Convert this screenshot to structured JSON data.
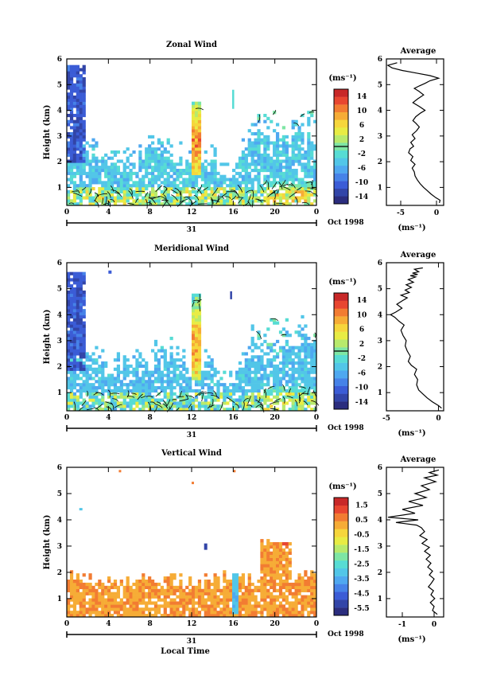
{
  "chart_data": [
    {
      "type": "heatmap",
      "title": "Zonal Wind",
      "ylabel": "Height (km)",
      "ylim": [
        0.3,
        6
      ],
      "xlim": [
        0,
        24
      ],
      "x_ticks": [
        "0",
        "4",
        "8",
        "12",
        "16",
        "20",
        "0"
      ],
      "y_ticks": [
        "1",
        "2",
        "3",
        "4",
        "5",
        "6"
      ],
      "date_day": "31",
      "date_month": "Oct 1998",
      "colorbar": {
        "unit": "(ms⁻¹)",
        "labels": [
          "14",
          "10",
          "6",
          "2",
          "-2",
          "-6",
          "-10",
          "-14"
        ],
        "range": [
          -16,
          16
        ],
        "contour_line": 0
      },
      "field": {
        "description_values": "m/s",
        "surface_range": [
          -4,
          6
        ],
        "mid_level": [
          -6,
          -2
        ],
        "upper_plume_0_2h_km": [
          2,
          5.8
        ],
        "upper_plume_0_2h_value": -11,
        "updraft_12_13h_km": [
          1.5,
          4.3
        ],
        "updraft_12_13h_value": 12
      },
      "profile": {
        "title": "Average",
        "xlabel": "(ms⁻¹)",
        "x_ticks": [
          "-5",
          "0"
        ],
        "xlim": [
          -7,
          1
        ],
        "y_ticks": [
          "1",
          "2",
          "3",
          "4",
          "5",
          "6"
        ],
        "x": [
          0.4,
          0.5,
          -0.1,
          -0.8,
          -1.4,
          -1.8,
          -2.3,
          -2.7,
          -3.0,
          -3.1,
          -3.4,
          -3.0,
          -3.6,
          -3.3,
          -3.9,
          -3.7,
          -3.2,
          -3.6,
          -3.0,
          -3.4,
          -2.8,
          -2.4,
          -2.9,
          -3.3,
          -2.9,
          -2.2,
          -1.6,
          -2.4,
          -3.3,
          -2.6,
          -1.8,
          -2.5,
          -3.1,
          -2.4,
          -1.6,
          -0.9,
          0.3,
          -0.9,
          -2.8,
          -4.8,
          -6.2,
          -6.8,
          -5.5
        ],
        "y": [
          0.4,
          0.5,
          0.6,
          0.75,
          0.9,
          1.0,
          1.15,
          1.3,
          1.45,
          1.6,
          1.75,
          1.9,
          2.05,
          2.2,
          2.35,
          2.5,
          2.6,
          2.75,
          2.9,
          3.05,
          3.2,
          3.35,
          3.5,
          3.6,
          3.75,
          3.9,
          4.0,
          4.15,
          4.3,
          4.45,
          4.6,
          4.75,
          4.85,
          4.95,
          5.05,
          5.15,
          5.25,
          5.35,
          5.45,
          5.55,
          5.65,
          5.75,
          5.85
        ]
      }
    },
    {
      "type": "heatmap",
      "title": "Meridional Wind",
      "ylabel": "Height (km)",
      "ylim": [
        0.3,
        6
      ],
      "xlim": [
        0,
        24
      ],
      "x_ticks": [
        "0",
        "4",
        "8",
        "12",
        "16",
        "20",
        "0"
      ],
      "y_ticks": [
        "1",
        "2",
        "3",
        "4",
        "5",
        "6"
      ],
      "date_day": "31",
      "date_month": "Oct 1998",
      "colorbar": {
        "unit": "(ms⁻¹)",
        "labels": [
          "14",
          "10",
          "6",
          "2",
          "-2",
          "-6",
          "-10",
          "-14"
        ],
        "range": [
          -16,
          16
        ],
        "contour_line": 0
      },
      "field": {
        "description_values": "m/s",
        "surface_range": [
          -6,
          4
        ],
        "mid_level": [
          -6,
          -3
        ],
        "upper_plume_0_2h_km": [
          1.8,
          5.7
        ],
        "upper_plume_0_2h_value": -11,
        "updraft_12_13h_km": [
          1.5,
          4.8
        ],
        "updraft_12_13h_value": 11
      },
      "profile": {
        "title": "Average",
        "xlabel": "(ms⁻¹)",
        "x_ticks": [
          "-5",
          "0"
        ],
        "xlim": [
          -5,
          0.5
        ],
        "y_ticks": [
          "1",
          "2",
          "3",
          "4",
          "5",
          "6"
        ],
        "x": [
          0.3,
          0.0,
          -0.6,
          -1.1,
          -1.5,
          -1.9,
          -2.1,
          -2.0,
          -2.3,
          -2.1,
          -2.6,
          -2.9,
          -2.7,
          -3.0,
          -3.2,
          -3.1,
          -3.4,
          -3.6,
          -3.3,
          -3.8,
          -4.2,
          -4.6,
          -4.1,
          -3.5,
          -4.0,
          -3.4,
          -3.0,
          -3.6,
          -2.8,
          -3.2,
          -2.6,
          -3.1,
          -2.4,
          -2.9,
          -2.2,
          -2.7,
          -2.0,
          -2.5,
          -1.9,
          -2.3,
          -1.5
        ],
        "y": [
          0.4,
          0.5,
          0.65,
          0.8,
          0.95,
          1.1,
          1.3,
          1.5,
          1.7,
          1.9,
          2.05,
          2.2,
          2.4,
          2.6,
          2.8,
          3.0,
          3.2,
          3.4,
          3.6,
          3.75,
          3.9,
          4.0,
          4.1,
          4.25,
          4.4,
          4.55,
          4.65,
          4.75,
          4.85,
          4.95,
          5.05,
          5.15,
          5.25,
          5.35,
          5.45,
          5.5,
          5.55,
          5.6,
          5.65,
          5.75,
          5.8
        ]
      }
    },
    {
      "type": "heatmap",
      "title": "Vertical Wind",
      "ylabel": "Height (km)",
      "xlabel": "Local Time",
      "ylim": [
        0.3,
        6
      ],
      "xlim": [
        0,
        24
      ],
      "x_ticks": [
        "0",
        "4",
        "8",
        "12",
        "16",
        "20",
        "0"
      ],
      "y_ticks": [
        "1",
        "2",
        "3",
        "4",
        "5",
        "6"
      ],
      "date_day": "31",
      "date_month": "Oct 1998",
      "colorbar": {
        "unit": "(ms⁻¹)",
        "labels": [
          "1.5",
          "0.5",
          "-0.5",
          "-1.5",
          "-2.5",
          "-3.5",
          "-4.5",
          "-5.5"
        ],
        "range": [
          -6,
          2
        ]
      },
      "field": {
        "description_values": "m/s",
        "surface_layer_km": [
          0.3,
          1.8
        ],
        "surface_value": 0.3,
        "downdraft_16h_value": -3.2,
        "late_updraft_19_21h_km": [
          2.5,
          3.2
        ],
        "late_updraft_value": 0.9
      },
      "profile": {
        "title": "Average",
        "xlabel": "(ms⁻¹)",
        "x_ticks": [
          "-1",
          "0"
        ],
        "xlim": [
          -1.5,
          0.3
        ],
        "y_ticks": [
          "1",
          "2",
          "3",
          "4",
          "5",
          "6"
        ],
        "x": [
          0.1,
          -0.05,
          0.0,
          -0.12,
          0.02,
          -0.1,
          -0.02,
          -0.18,
          -0.08,
          0.0,
          -0.15,
          -0.05,
          -0.2,
          -0.1,
          -0.25,
          -0.12,
          -0.3,
          -0.15,
          -0.38,
          -0.22,
          -0.45,
          -0.3,
          -0.4,
          -0.55,
          -1.2,
          -0.5,
          -1.45,
          -0.6,
          -1.0,
          -0.35,
          -0.8,
          -0.25,
          -0.6,
          -0.15,
          -0.4,
          0.05,
          -0.3,
          0.1,
          -0.15,
          0.15
        ],
        "y": [
          0.4,
          0.55,
          0.7,
          0.85,
          1.0,
          1.15,
          1.3,
          1.45,
          1.6,
          1.75,
          1.9,
          2.05,
          2.2,
          2.35,
          2.5,
          2.65,
          2.8,
          2.95,
          3.1,
          3.25,
          3.4,
          3.55,
          3.7,
          3.8,
          3.9,
          4.0,
          4.1,
          4.25,
          4.4,
          4.55,
          4.7,
          4.85,
          5.0,
          5.15,
          5.3,
          5.45,
          5.6,
          5.7,
          5.8,
          5.9
        ]
      }
    }
  ],
  "colors": {
    "scale": [
      "#2b2d7e",
      "#3245a8",
      "#3b5cd6",
      "#4682e8",
      "#4fa8f0",
      "#52c6e8",
      "#57dcd4",
      "#7ee6a4",
      "#b8ea6c",
      "#e8ec44",
      "#f6d63c",
      "#f6ac36",
      "#f27c32",
      "#e84630",
      "#c82828"
    ]
  }
}
